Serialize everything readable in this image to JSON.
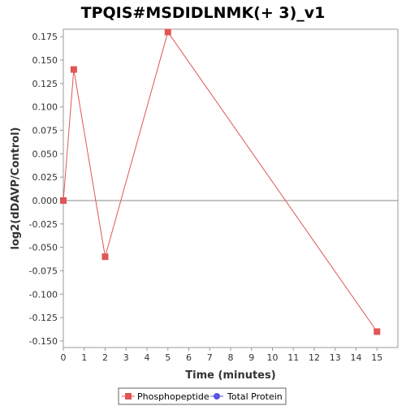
{
  "chart_data": {
    "type": "line",
    "title": "TPQIS#MSDIDLNMK(+ 3)_v1",
    "xlabel": "Time (minutes)",
    "ylabel": "log2(dDAVP/Control)",
    "xlim": [
      0,
      16
    ],
    "ylim": [
      -0.157,
      0.183
    ],
    "xticks": [
      0,
      1,
      2,
      3,
      4,
      5,
      6,
      7,
      8,
      9,
      10,
      11,
      12,
      13,
      14,
      15
    ],
    "xtick_labels": [
      "0",
      "1",
      "2",
      "3",
      "4",
      "5",
      "6",
      "7",
      "8",
      "9",
      "10",
      "11",
      "12",
      "13",
      "14",
      "15"
    ],
    "yticks": [
      -0.15,
      -0.125,
      -0.1,
      -0.075,
      -0.05,
      -0.025,
      0,
      0.025,
      0.05,
      0.075,
      0.1,
      0.125,
      0.15,
      0.175
    ],
    "ytick_labels": [
      "-0.150",
      "-0.125",
      "-0.100",
      "-0.075",
      "-0.050",
      "-0.025",
      "0.000",
      "0.025",
      "0.050",
      "0.075",
      "0.100",
      "0.125",
      "0.150",
      "0.175"
    ],
    "zero_line": true,
    "grid": false,
    "legend_position": "bottom",
    "series": [
      {
        "name": "Phosphopeptide",
        "color": "#e05555",
        "marker": "square",
        "x": [
          0,
          0.5,
          2,
          5,
          15
        ],
        "y": [
          0,
          0.14,
          -0.06,
          0.18,
          -0.14
        ]
      },
      {
        "name": "Total Protein",
        "color": "#5555e0",
        "marker": "circle",
        "x": [],
        "y": []
      }
    ]
  }
}
